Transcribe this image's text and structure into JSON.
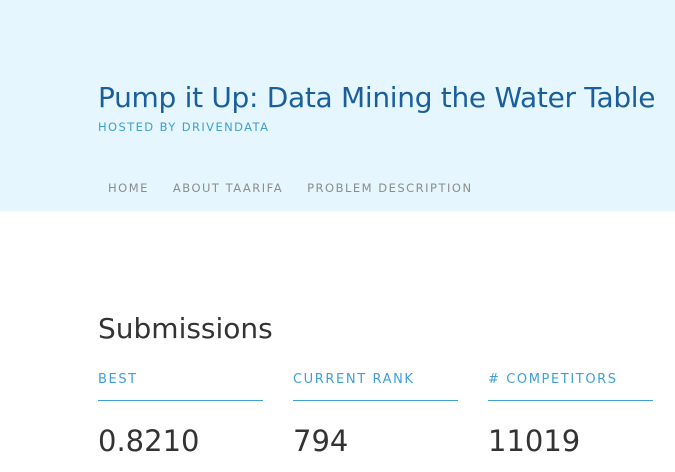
{
  "header": {
    "title": "Pump it Up: Data Mining the Water Table",
    "subtitle": "HOSTED BY DRIVENDATA",
    "background": "#e6f6fe",
    "title_color": "#1a5e9c",
    "accent": "#3f9fd6"
  },
  "nav": {
    "items": [
      {
        "label": "HOME"
      },
      {
        "label": "ABOUT TAARIFA"
      },
      {
        "label": "PROBLEM DESCRIPTION"
      }
    ]
  },
  "submissions": {
    "title": "Submissions",
    "stats": [
      {
        "label": "BEST",
        "value": "0.8210"
      },
      {
        "label": "CURRENT RANK",
        "value": "794"
      },
      {
        "label": "# COMPETITORS",
        "value": "11019"
      }
    ]
  }
}
